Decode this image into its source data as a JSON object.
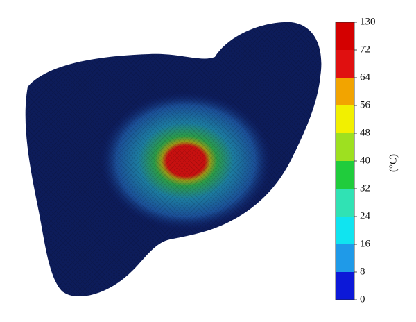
{
  "colorbar": {
    "label": "(°C)",
    "ticks": [
      0,
      8,
      16,
      24,
      32,
      40,
      48,
      56,
      64,
      72,
      130
    ],
    "colors": [
      "#0c18d8",
      "#1f9ae8",
      "#10e4f0",
      "#30e2b4",
      "#20cc3c",
      "#9ee020",
      "#f2f000",
      "#f2a400",
      "#e01010",
      "#d40000"
    ]
  }
}
